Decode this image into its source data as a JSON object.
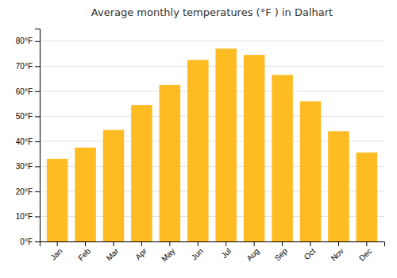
{
  "chart_data": {
    "type": "bar",
    "title": "Average monthly temperatures (°F ) in Dalhart",
    "categories": [
      "Jan",
      "Feb",
      "Mar",
      "Apr",
      "May",
      "Jun",
      "Jul",
      "Aug",
      "Sep",
      "Oct",
      "Nov",
      "Dec"
    ],
    "values": [
      33,
      37.5,
      44.5,
      54.5,
      62.5,
      72.5,
      77,
      74.5,
      66.5,
      56,
      44,
      35.5
    ],
    "color": "#FFBB22",
    "ylim": [
      0,
      85
    ],
    "yticks": [
      {
        "value": 0,
        "label": "0°F"
      },
      {
        "value": 10,
        "label": "10°F"
      },
      {
        "value": 20,
        "label": "20°F"
      },
      {
        "value": 30,
        "label": "30°F"
      },
      {
        "value": 40,
        "label": "40°F"
      },
      {
        "value": 50,
        "label": "50°F"
      },
      {
        "value": 60,
        "label": "60°F"
      },
      {
        "value": 70,
        "label": "70°F"
      },
      {
        "value": 80,
        "label": "80°F"
      }
    ],
    "grid": true
  }
}
